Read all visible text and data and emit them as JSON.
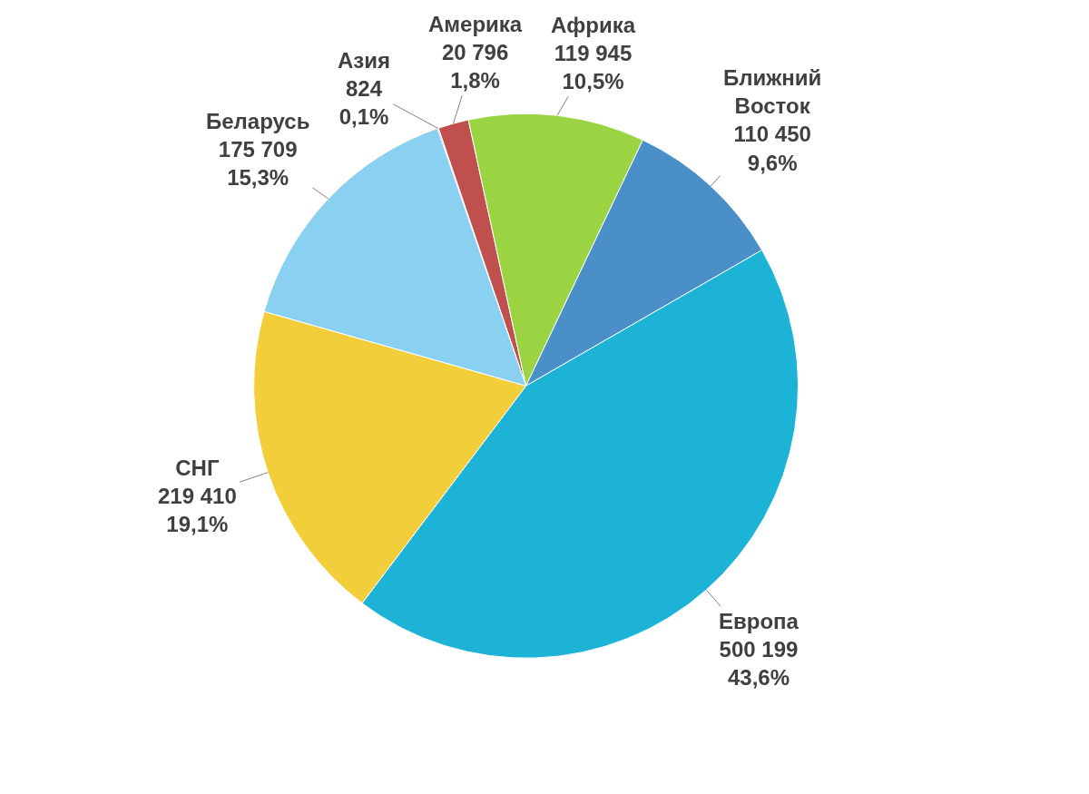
{
  "chart_data": {
    "type": "pie",
    "categories": [
      "Азия",
      "Америка",
      "Африка",
      "Ближний Восток",
      "Европа",
      "СНГ",
      "Беларусь"
    ],
    "values": [
      824,
      20796,
      119945,
      110450,
      500199,
      219410,
      175709
    ],
    "value_labels": [
      "824\n0,1%",
      "20 796\n1,8%",
      "119 945\n10,5%",
      "110 450\n9,6%",
      "500 199\n43,6%",
      "219 410\n19,1%",
      "175 709\n15,3%"
    ],
    "colors": [
      "#8064a2",
      "#c0504d",
      "#9bd443",
      "#4a8fc8",
      "#1cb3d6",
      "#f2cf3a",
      "#8ad0f0"
    ],
    "legend": false
  }
}
